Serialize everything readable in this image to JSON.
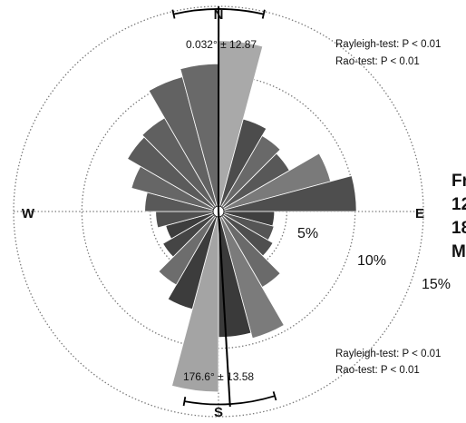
{
  "chart_data": {
    "type": "rose",
    "compass": {
      "north": "N",
      "east": "E",
      "south": "S",
      "west": "W"
    },
    "radial_ticks": [
      "5%",
      "10%",
      "15%"
    ],
    "radial_values": [
      5,
      10,
      15
    ],
    "radial_max": 15,
    "bin_width_deg": 15,
    "bins": [
      {
        "angle": 7.5,
        "value": 12.5,
        "color": "#a9a9a9"
      },
      {
        "angle": 22.5,
        "value": 7.0,
        "color": "#4c4c4c"
      },
      {
        "angle": 37.5,
        "value": 6.4,
        "color": "#696969"
      },
      {
        "angle": 52.5,
        "value": 6.0,
        "color": "#585858"
      },
      {
        "angle": 67.5,
        "value": 8.5,
        "color": "#7a7a7a"
      },
      {
        "angle": 82.5,
        "value": 10.1,
        "color": "#4e4e4e"
      },
      {
        "angle": 97.5,
        "value": 4.1,
        "color": "#3f3f3f"
      },
      {
        "angle": 112.5,
        "value": 4.2,
        "color": "#555555"
      },
      {
        "angle": 127.5,
        "value": 4.6,
        "color": "#4f4f4f"
      },
      {
        "angle": 142.5,
        "value": 6.4,
        "color": "#6a6a6a"
      },
      {
        "angle": 157.5,
        "value": 9.6,
        "color": "#7b7b7b"
      },
      {
        "angle": 172.5,
        "value": 9.2,
        "color": "#3a3a3a"
      },
      {
        "angle": 187.5,
        "value": 13.2,
        "color": "#a4a4a4"
      },
      {
        "angle": 202.5,
        "value": 7.4,
        "color": "#3c3c3c"
      },
      {
        "angle": 217.5,
        "value": 6.2,
        "color": "#6d6d6d"
      },
      {
        "angle": 232.5,
        "value": 4.7,
        "color": "#454545"
      },
      {
        "angle": 247.5,
        "value": 4.0,
        "color": "#3d3d3d"
      },
      {
        "angle": 262.5,
        "value": 4.6,
        "color": "#505050"
      },
      {
        "angle": 277.5,
        "value": 5.4,
        "color": "#595959"
      },
      {
        "angle": 292.5,
        "value": 6.6,
        "color": "#666666"
      },
      {
        "angle": 307.5,
        "value": 7.7,
        "color": "#5b5b5b"
      },
      {
        "angle": 322.5,
        "value": 7.9,
        "color": "#606060"
      },
      {
        "angle": 337.5,
        "value": 10.2,
        "color": "#626262"
      },
      {
        "angle": 352.5,
        "value": 10.8,
        "color": "#696969"
      }
    ],
    "mean_directions": [
      {
        "angle": 0.032,
        "label": "0.032° ± 12.87",
        "arc_half_width_deg": 12.87,
        "length": 15,
        "tests": [
          "Rayleigh-test: P < 0.01",
          "Rao-test: P < 0.01"
        ]
      },
      {
        "angle": 176.6,
        "label": "176.6° ± 13.58",
        "arc_half_width_deg": 13.58,
        "length": 14.3,
        "tests": [
          "Rayleigh-test: P < 0.01",
          "Rao-test: P < 0.01"
        ]
      }
    ],
    "side_text": [
      "Fr",
      "12",
      "18",
      "M"
    ],
    "grid": "dotted",
    "colors": {
      "axis": "#000000",
      "grid": "#777777"
    }
  }
}
